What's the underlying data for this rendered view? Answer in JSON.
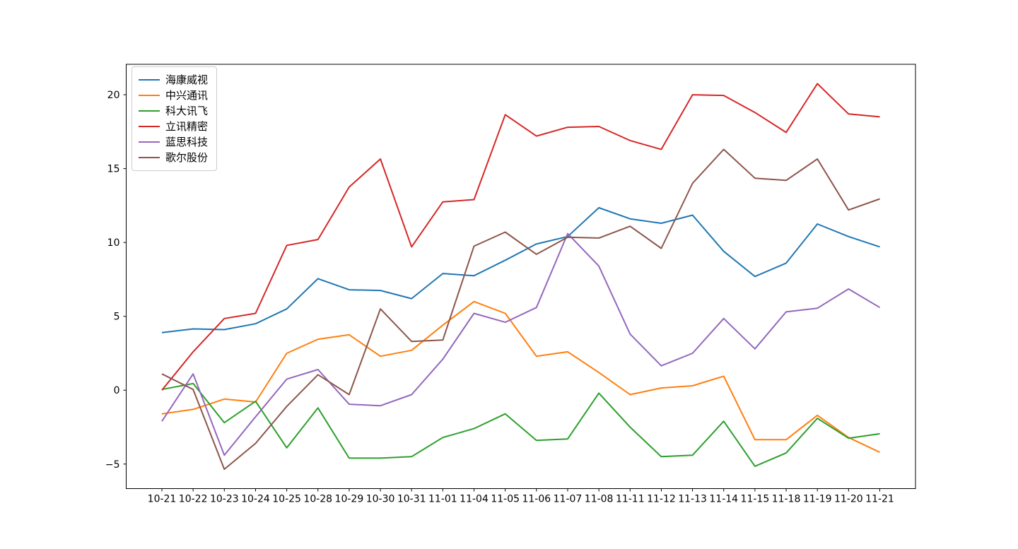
{
  "chart_data": {
    "type": "line",
    "title": "",
    "xlabel": "",
    "ylabel": "",
    "grid": false,
    "background": "#ffffff",
    "axis_color": "#000000",
    "legend_position": "upper-left",
    "ylim": [
      -6.66,
      22.06
    ],
    "y_tick_values": [
      20,
      15,
      10,
      5,
      0,
      -5
    ],
    "y_tick_labels": [
      "20",
      "15",
      "10",
      "5",
      "0",
      "−5"
    ],
    "categories": [
      "10-21",
      "10-22",
      "10-23",
      "10-24",
      "10-25",
      "10-28",
      "10-29",
      "10-30",
      "10-31",
      "11-01",
      "11-04",
      "11-05",
      "11-06",
      "11-07",
      "11-08",
      "11-11",
      "11-12",
      "11-13",
      "11-14",
      "11-15",
      "11-18",
      "11-19",
      "11-20",
      "11-21"
    ],
    "series": [
      {
        "name": "海康威视",
        "color": "#1f77b4",
        "values": [
          3.9,
          4.15,
          4.1,
          4.5,
          5.5,
          7.55,
          6.8,
          6.75,
          6.2,
          7.9,
          7.75,
          8.8,
          9.9,
          10.4,
          12.35,
          11.6,
          11.3,
          11.85,
          9.4,
          7.7,
          8.6,
          11.25,
          10.4,
          9.7
        ]
      },
      {
        "name": "中兴通讯",
        "color": "#ff7f0e",
        "values": [
          -1.6,
          -1.3,
          -0.6,
          -0.8,
          2.5,
          3.45,
          3.75,
          2.3,
          2.7,
          4.4,
          6.0,
          5.2,
          2.3,
          2.6,
          1.2,
          -0.3,
          0.15,
          0.3,
          0.95,
          -3.35,
          -3.35,
          -1.7,
          -3.2,
          -4.2
        ]
      },
      {
        "name": "科大讯飞",
        "color": "#2ca02c",
        "values": [
          0.05,
          0.45,
          -2.2,
          -0.75,
          -3.9,
          -1.2,
          -4.6,
          -4.6,
          -4.5,
          -3.2,
          -2.6,
          -1.6,
          -3.4,
          -3.3,
          -0.2,
          -2.5,
          -4.5,
          -4.4,
          -2.1,
          -5.15,
          -4.25,
          -1.9,
          -3.25,
          -2.95
        ]
      },
      {
        "name": "立讯精密",
        "color": "#d62728",
        "values": [
          0.0,
          2.6,
          4.85,
          5.2,
          9.8,
          10.2,
          13.75,
          15.65,
          9.7,
          12.75,
          12.9,
          18.65,
          17.2,
          17.8,
          17.85,
          16.9,
          16.3,
          20.0,
          19.95,
          18.8,
          17.45,
          20.75,
          18.7,
          18.5
        ]
      },
      {
        "name": "蓝思科技",
        "color": "#9467bd",
        "values": [
          -2.1,
          1.1,
          -4.4,
          -1.8,
          0.75,
          1.4,
          -0.95,
          -1.05,
          -0.3,
          2.1,
          5.2,
          4.6,
          5.6,
          10.6,
          8.4,
          3.8,
          1.65,
          2.5,
          4.85,
          2.8,
          5.3,
          5.55,
          6.85,
          5.6
        ]
      },
      {
        "name": "歌尔股份",
        "color": "#8c564b",
        "values": [
          1.1,
          0.05,
          -5.35,
          -3.6,
          -1.1,
          1.05,
          -0.3,
          5.5,
          3.3,
          3.4,
          9.75,
          10.7,
          9.2,
          10.35,
          10.3,
          11.1,
          9.6,
          14.0,
          16.3,
          14.35,
          14.2,
          15.65,
          12.2,
          12.95
        ]
      }
    ]
  }
}
